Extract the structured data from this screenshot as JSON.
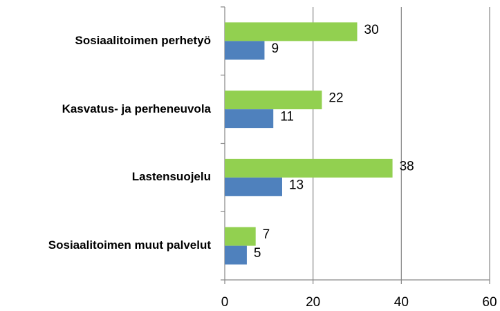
{
  "chart_data": {
    "type": "bar",
    "orientation": "horizontal",
    "categories": [
      "Sosiaalitoimen perhetyö",
      "Kasvatus- ja perheneuvola",
      "Lastensuojelu",
      "Sosiaalitoimen muut palvelut"
    ],
    "series": [
      {
        "color": "#92d050",
        "values": [
          30,
          22,
          38,
          7
        ]
      },
      {
        "color": "#4f81bd",
        "values": [
          9,
          11,
          13,
          5
        ]
      }
    ],
    "xlim": [
      0,
      60
    ],
    "xticks": [
      0,
      20,
      40,
      60
    ],
    "grid": true
  }
}
